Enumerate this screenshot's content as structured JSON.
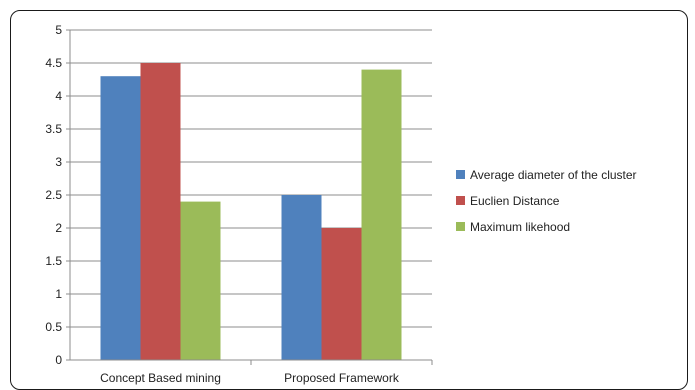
{
  "chart_data": {
    "type": "bar",
    "categories": [
      "Concept Based mining",
      "Proposed Framework"
    ],
    "series": [
      {
        "name": "Average diameter of the cluster",
        "color": "#4f81bd",
        "values": [
          4.3,
          2.5
        ]
      },
      {
        "name": "Euclien Distance",
        "color": "#c0504d",
        "values": [
          4.5,
          2.0
        ]
      },
      {
        "name": "Maximum likehood",
        "color": "#9bbb59",
        "values": [
          2.4,
          4.4
        ]
      }
    ],
    "ylim": [
      0,
      5
    ],
    "yticks": [
      "0",
      "0.5",
      "1",
      "1.5",
      "2",
      "2.5",
      "3",
      "3.5",
      "4",
      "4.5",
      "5"
    ],
    "grid": true,
    "legend_position": "right"
  }
}
